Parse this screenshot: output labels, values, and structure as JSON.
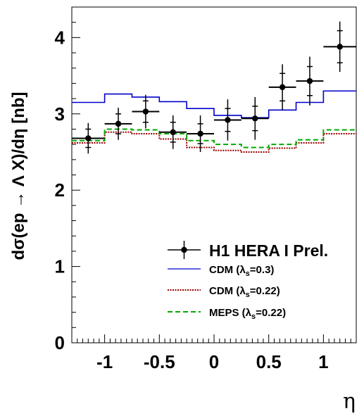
{
  "chart_data": {
    "type": "line",
    "xlabel": "η",
    "ylabel": "dσ(ep → Λ X)/dη [nb]",
    "xlim": [
      -1.3,
      1.3
    ],
    "ylim": [
      0,
      4.4
    ],
    "x_ticks": [
      -1,
      -0.5,
      0,
      0.5,
      1
    ],
    "x_tick_labels": [
      "-1",
      "-0.5",
      "0",
      "0.5",
      "1"
    ],
    "y_ticks": [
      0,
      1,
      2,
      3,
      4
    ],
    "y_tick_labels": [
      "0",
      "1",
      "2",
      "3",
      "4"
    ],
    "grid": false,
    "legend_position": "bottom-right",
    "bin_edges": [
      -1.3,
      -1.0,
      -0.75,
      -0.5,
      -0.25,
      0.0,
      0.25,
      0.5,
      0.75,
      1.0,
      1.3
    ],
    "data_series": {
      "name": "H1 HERA I Prel.",
      "color": "#000000",
      "points": [
        {
          "x": -1.15,
          "xerr": 0.15,
          "y": 2.68,
          "stat": 0.12,
          "tot": 0.2
        },
        {
          "x": -0.875,
          "xerr": 0.125,
          "y": 2.87,
          "stat": 0.13,
          "tot": 0.21
        },
        {
          "x": -0.625,
          "xerr": 0.125,
          "y": 3.03,
          "stat": 0.14,
          "tot": 0.22
        },
        {
          "x": -0.375,
          "xerr": 0.125,
          "y": 2.76,
          "stat": 0.13,
          "tot": 0.22
        },
        {
          "x": -0.125,
          "xerr": 0.125,
          "y": 2.74,
          "stat": 0.13,
          "tot": 0.24
        },
        {
          "x": 0.125,
          "xerr": 0.125,
          "y": 2.92,
          "stat": 0.15,
          "tot": 0.27
        },
        {
          "x": 0.375,
          "xerr": 0.125,
          "y": 2.94,
          "stat": 0.16,
          "tot": 0.28
        },
        {
          "x": 0.625,
          "xerr": 0.125,
          "y": 3.35,
          "stat": 0.18,
          "tot": 0.3
        },
        {
          "x": 0.875,
          "xerr": 0.125,
          "y": 3.43,
          "stat": 0.19,
          "tot": 0.32
        },
        {
          "x": 1.15,
          "xerr": 0.15,
          "y": 3.88,
          "stat": 0.21,
          "tot": 0.33
        }
      ]
    },
    "series": [
      {
        "name": "CDM (λs=0.3)",
        "color": "#0000cc",
        "style": "solid",
        "values": [
          3.15,
          3.26,
          3.22,
          3.16,
          3.07,
          2.98,
          2.95,
          3.05,
          3.15,
          3.3
        ]
      },
      {
        "name": "CDM (λs=0.22)",
        "color": "#990000",
        "style": "dotted",
        "values": [
          2.62,
          2.76,
          2.74,
          2.67,
          2.56,
          2.52,
          2.5,
          2.55,
          2.62,
          2.74
        ]
      },
      {
        "name": "MEPS (λs=0.22)",
        "color": "#00aa00",
        "style": "dashed",
        "values": [
          2.65,
          2.8,
          2.79,
          2.74,
          2.65,
          2.6,
          2.56,
          2.6,
          2.66,
          2.79
        ]
      }
    ],
    "legend": {
      "entries": [
        {
          "label": "H1 HERA I Prel.",
          "main": true
        },
        {
          "label": "CDM (λ",
          "sub": "s",
          "tail": "=0.3)"
        },
        {
          "label": "CDM (λ",
          "sub": "s",
          "tail": "=0.22)"
        },
        {
          "label": "MEPS (λ",
          "sub": "s",
          "tail": "=0.22)"
        }
      ]
    }
  }
}
